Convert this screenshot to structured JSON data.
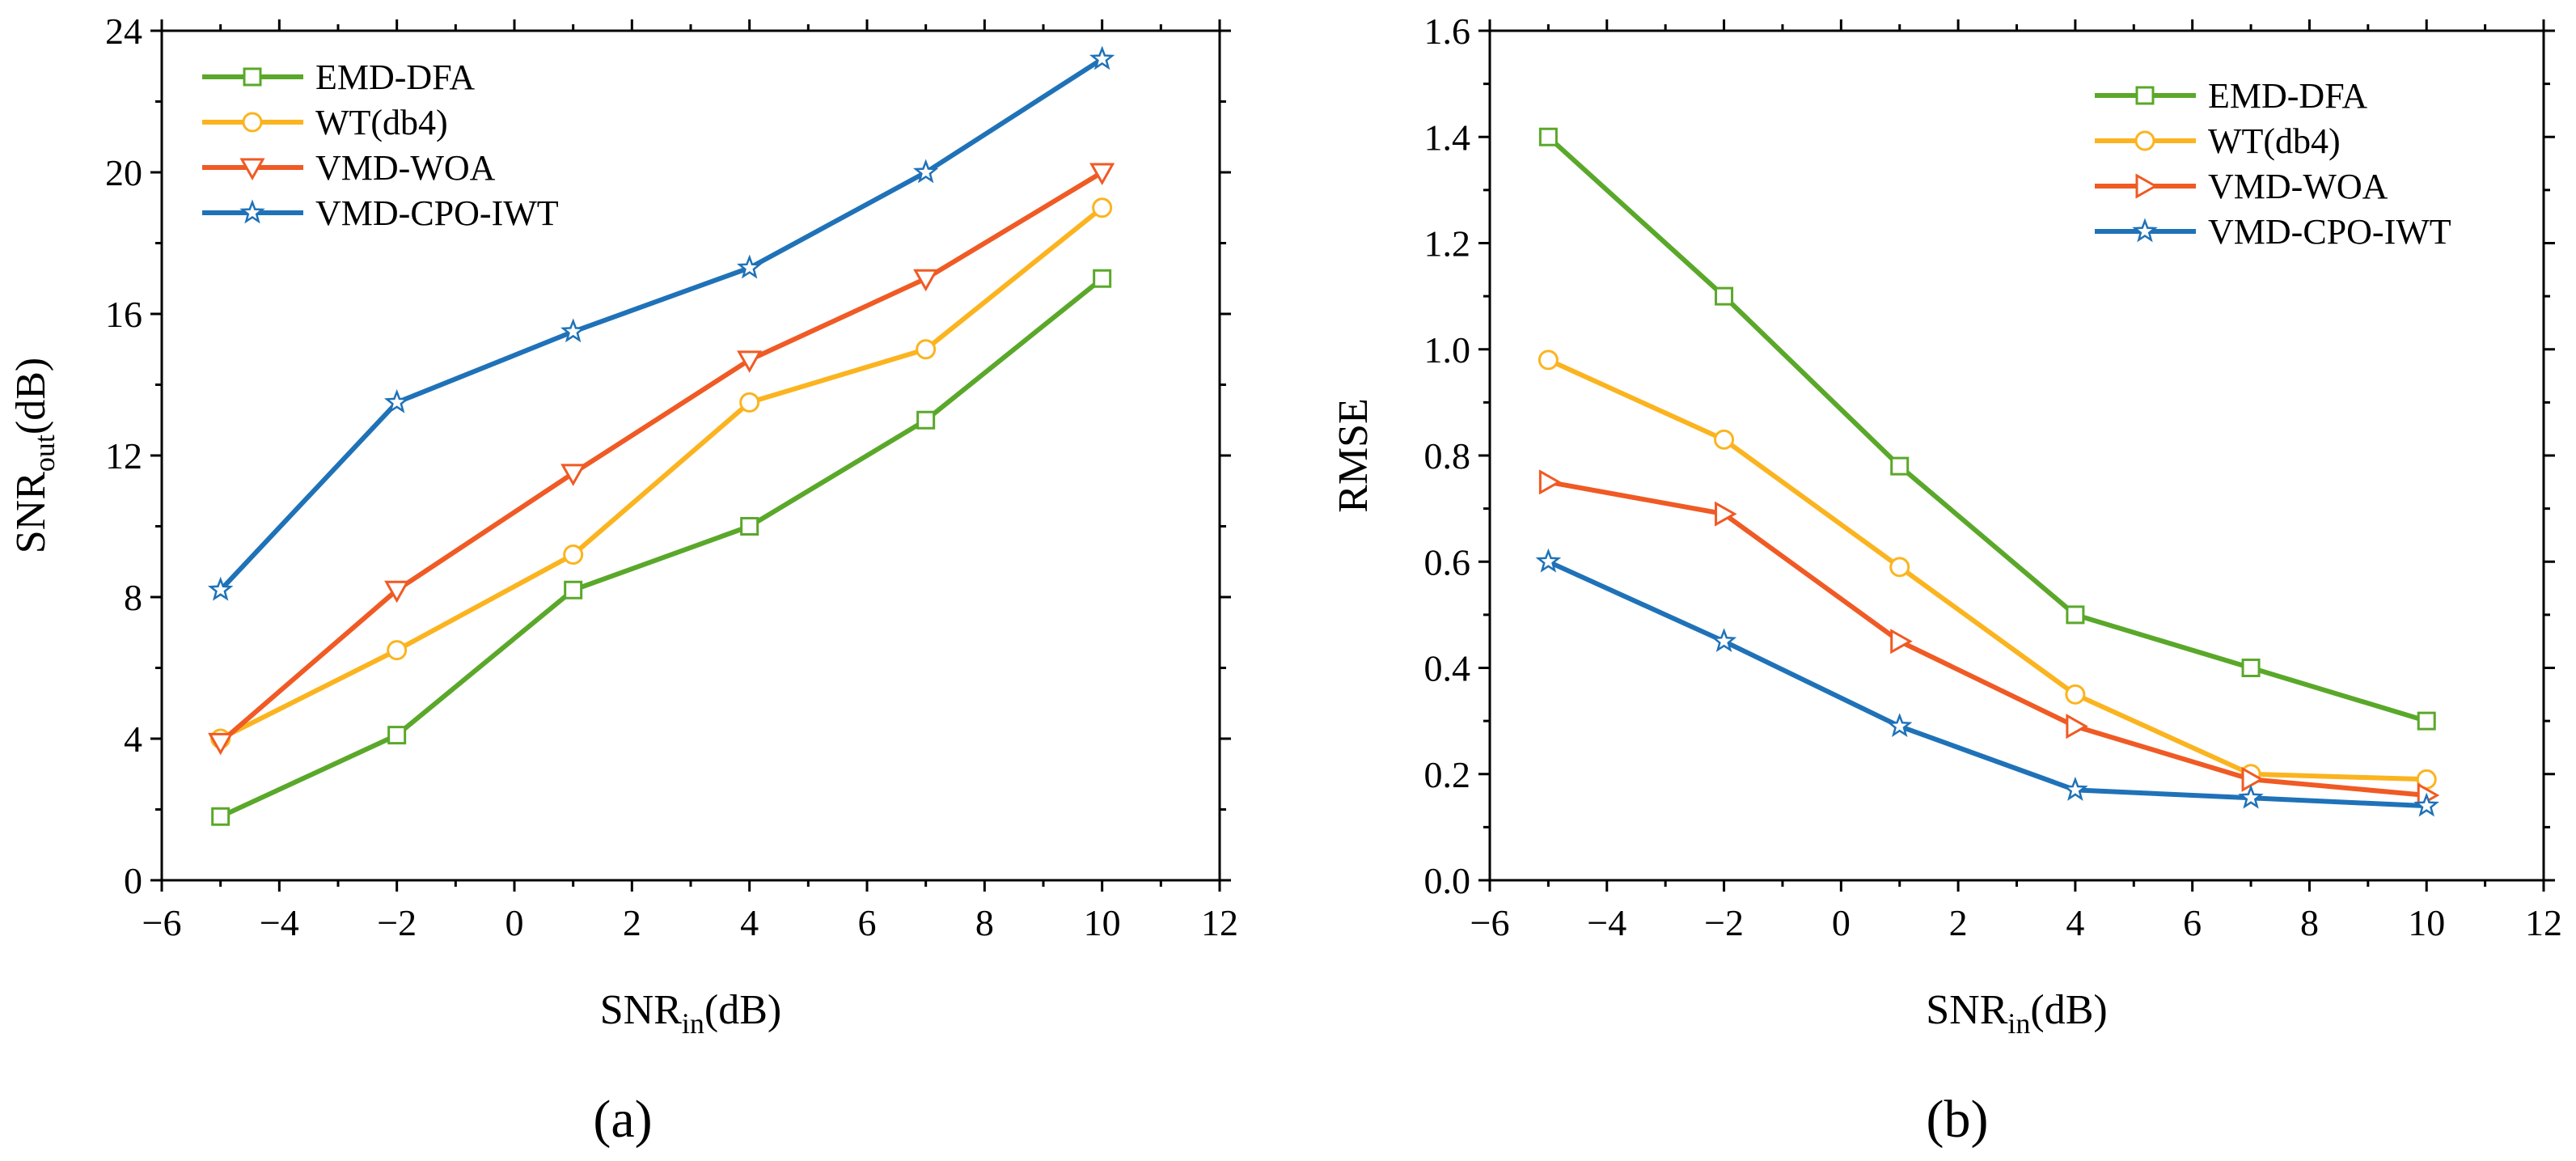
{
  "chart_data": [
    {
      "type": "line",
      "panel_label": "(a)",
      "xlabel": {
        "main": "SNR",
        "sub": "in",
        "suffix": "(dB)"
      },
      "ylabel": {
        "main": "SNR",
        "sub": "out",
        "suffix": "(dB)"
      },
      "xlim": [
        -6,
        12
      ],
      "ylim": [
        0,
        24
      ],
      "xticks": [
        -6,
        -4,
        -2,
        0,
        2,
        4,
        6,
        8,
        10,
        12
      ],
      "yticks": [
        0,
        4,
        8,
        12,
        16,
        20,
        24
      ],
      "x": [
        -5,
        -2,
        1,
        4,
        7,
        10
      ],
      "legend_position": "top-left",
      "series": [
        {
          "name": "EMD-DFA",
          "color": "#5aa82a",
          "marker": "square",
          "values": [
            1.8,
            4.1,
            8.2,
            10.0,
            13.0,
            17.0
          ]
        },
        {
          "name": "WT(db4)",
          "color": "#fbb41f",
          "marker": "circle",
          "values": [
            4.0,
            6.5,
            9.2,
            13.5,
            15.0,
            19.0
          ]
        },
        {
          "name": "VMD-WOA",
          "color": "#f05a24",
          "marker": "triangle-down",
          "values": [
            3.9,
            8.2,
            11.5,
            14.7,
            17.0,
            20.0
          ]
        },
        {
          "name": "VMD-CPO-IWT",
          "color": "#1f72b8",
          "marker": "star",
          "values": [
            8.2,
            13.5,
            15.5,
            17.3,
            20.0,
            23.2
          ]
        }
      ]
    },
    {
      "type": "line",
      "panel_label": "(b)",
      "xlabel": {
        "main": "SNR",
        "sub": "in",
        "suffix": "(dB)"
      },
      "ylabel": {
        "main": "RMSE",
        "sub": "",
        "suffix": ""
      },
      "xlim": [
        -6,
        12
      ],
      "ylim": [
        0,
        1.6
      ],
      "xticks": [
        -6,
        -4,
        -2,
        0,
        2,
        4,
        6,
        8,
        10,
        12
      ],
      "yticks": [
        "0.0",
        "0.2",
        "0.4",
        "0.6",
        "0.8",
        "1.0",
        "1.2",
        "1.4",
        "1.6"
      ],
      "x": [
        -5,
        -2,
        1,
        4,
        7,
        10
      ],
      "legend_position": "top-right",
      "series": [
        {
          "name": "EMD-DFA",
          "color": "#5aa82a",
          "marker": "square",
          "values": [
            1.4,
            1.1,
            0.78,
            0.5,
            0.4,
            0.3
          ]
        },
        {
          "name": "WT(db4)",
          "color": "#fbb41f",
          "marker": "circle",
          "values": [
            0.98,
            0.83,
            0.59,
            0.35,
            0.2,
            0.19
          ]
        },
        {
          "name": "VMD-WOA",
          "color": "#f05a24",
          "marker": "triangle-right",
          "values": [
            0.75,
            0.69,
            0.45,
            0.29,
            0.19,
            0.16
          ]
        },
        {
          "name": "VMD-CPO-IWT",
          "color": "#1f72b8",
          "marker": "star",
          "values": [
            0.6,
            0.45,
            0.29,
            0.17,
            0.155,
            0.14
          ]
        }
      ]
    }
  ]
}
